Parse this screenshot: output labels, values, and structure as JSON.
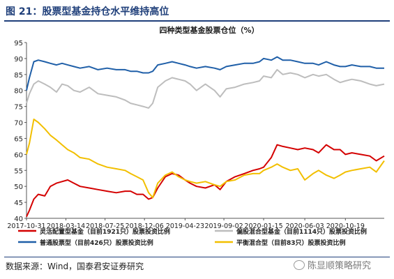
{
  "figure": {
    "title": "图 21：股票型基金持仓水平维持高位",
    "source": "数据来源：Wind，国泰君安证券研究",
    "watermark": "陈显顺策略研究"
  },
  "colors": {
    "title": "#1f3f7a",
    "axis": "#555555",
    "flexible": "#d40000",
    "partial_equity": "#bdbdbd",
    "equity": "#1f5fa8",
    "balanced": "#f2bf00"
  },
  "chart_data": {
    "type": "line",
    "title": "四种类型基金股票仓位（%）",
    "xlabel": "",
    "ylabel": "",
    "ylim": [
      40,
      95
    ],
    "yticks": [
      40,
      45,
      50,
      55,
      60,
      65,
      70,
      75,
      80,
      85,
      90,
      95
    ],
    "x_tick_labels": [
      "2017-10-31",
      "2018-03-14",
      "2018-07-25",
      "2018-12-06",
      "2019-04-23",
      "2019-09-02",
      "2020-01-15",
      "2020-06-03",
      "2020-10-19"
    ],
    "x_start": "2017-10-31",
    "x_end": "2021-02-28",
    "legend_position": "bottom",
    "grid": false,
    "series": [
      {
        "name": "灵活配置型基金（目前1921只）股票投资比例",
        "color": "#d40000",
        "x": [
          "2017-10-31",
          "2017-11-10",
          "2017-11-25",
          "2017-12-10",
          "2018-01-01",
          "2018-01-20",
          "2018-02-10",
          "2018-03-01",
          "2018-03-20",
          "2018-04-10",
          "2018-05-01",
          "2018-06-01",
          "2018-07-01",
          "2018-08-01",
          "2018-09-01",
          "2018-10-01",
          "2018-10-20",
          "2018-11-10",
          "2018-12-01",
          "2018-12-20",
          "2019-01-03",
          "2019-01-20",
          "2019-02-15",
          "2019-03-10",
          "2019-04-01",
          "2019-04-23",
          "2019-05-10",
          "2019-06-01",
          "2019-07-01",
          "2019-08-01",
          "2019-08-20",
          "2019-09-10",
          "2019-10-10",
          "2019-11-10",
          "2019-12-10",
          "2020-01-01",
          "2020-01-15",
          "2020-02-10",
          "2020-03-01",
          "2020-03-20",
          "2020-04-15",
          "2020-05-10",
          "2020-06-03",
          "2020-07-01",
          "2020-07-20",
          "2020-08-15",
          "2020-09-10",
          "2020-10-01",
          "2020-10-19",
          "2020-11-10",
          "2020-12-10",
          "2021-01-10",
          "2021-02-01",
          "2021-02-28"
        ],
        "values": [
          40.5,
          42.5,
          46,
          47.5,
          47,
          50,
          51,
          51.5,
          52,
          51,
          50,
          49.5,
          49,
          48.5,
          48,
          48.5,
          48.5,
          47.5,
          47.5,
          46,
          46.5,
          49.5,
          53,
          54,
          53.5,
          52,
          51,
          50,
          49.5,
          50.5,
          49,
          51.5,
          53,
          54,
          55,
          55.5,
          56,
          59,
          63,
          62.5,
          62,
          61.5,
          62,
          61.5,
          60.5,
          63,
          61.5,
          61.5,
          60,
          60.5,
          60,
          59.5,
          58,
          59.5
        ]
      },
      {
        "name": "偏股混合型基金（目前1114只）股票投资比例",
        "color": "#bdbdbd",
        "x": [
          "2017-10-31",
          "2017-11-10",
          "2017-11-25",
          "2017-12-10",
          "2018-01-01",
          "2018-01-20",
          "2018-02-10",
          "2018-03-01",
          "2018-03-20",
          "2018-04-10",
          "2018-05-01",
          "2018-06-01",
          "2018-07-01",
          "2018-08-01",
          "2018-09-01",
          "2018-10-01",
          "2018-10-20",
          "2018-11-10",
          "2018-12-01",
          "2018-12-20",
          "2019-01-03",
          "2019-01-20",
          "2019-02-15",
          "2019-03-10",
          "2019-04-01",
          "2019-04-23",
          "2019-05-10",
          "2019-06-01",
          "2019-07-01",
          "2019-08-01",
          "2019-08-20",
          "2019-09-10",
          "2019-10-10",
          "2019-11-10",
          "2019-12-10",
          "2020-01-01",
          "2020-01-15",
          "2020-02-10",
          "2020-03-01",
          "2020-03-20",
          "2020-04-15",
          "2020-05-10",
          "2020-06-03",
          "2020-07-01",
          "2020-07-20",
          "2020-08-15",
          "2020-09-10",
          "2020-10-01",
          "2020-10-19",
          "2020-11-10",
          "2020-12-10",
          "2021-01-10",
          "2021-02-01",
          "2021-02-28"
        ],
        "values": [
          76,
          79,
          82,
          83,
          82,
          81,
          79.5,
          82,
          81.5,
          80,
          79.5,
          81,
          79,
          78.5,
          78,
          77,
          76,
          75.5,
          75,
          74.5,
          76,
          81,
          83,
          84,
          83.5,
          83,
          82,
          80,
          82,
          80,
          78,
          80.5,
          81,
          82,
          82.5,
          83,
          84.5,
          84,
          86.5,
          85,
          85.5,
          85,
          84,
          85,
          84.5,
          85,
          83.5,
          82.5,
          83,
          83.5,
          83,
          82,
          81.5,
          82
        ]
      },
      {
        "name": "普通股票型（目前426只）股票投资比例",
        "color": "#1f5fa8",
        "x": [
          "2017-10-31",
          "2017-11-10",
          "2017-11-25",
          "2017-12-10",
          "2018-01-01",
          "2018-01-20",
          "2018-02-10",
          "2018-03-01",
          "2018-03-20",
          "2018-04-10",
          "2018-05-01",
          "2018-06-01",
          "2018-07-01",
          "2018-08-01",
          "2018-09-01",
          "2018-10-01",
          "2018-10-20",
          "2018-11-10",
          "2018-12-01",
          "2018-12-20",
          "2019-01-03",
          "2019-01-20",
          "2019-02-15",
          "2019-03-10",
          "2019-04-01",
          "2019-04-23",
          "2019-05-10",
          "2019-06-01",
          "2019-07-01",
          "2019-08-01",
          "2019-08-20",
          "2019-09-10",
          "2019-10-10",
          "2019-11-10",
          "2019-12-10",
          "2020-01-01",
          "2020-01-15",
          "2020-02-10",
          "2020-03-01",
          "2020-03-20",
          "2020-04-15",
          "2020-05-10",
          "2020-06-03",
          "2020-07-01",
          "2020-07-20",
          "2020-08-15",
          "2020-09-10",
          "2020-10-01",
          "2020-10-19",
          "2020-11-10",
          "2020-12-10",
          "2021-01-10",
          "2021-02-01",
          "2021-02-28"
        ],
        "values": [
          80,
          84,
          89,
          89.5,
          89,
          88.5,
          88,
          88.5,
          88,
          87.5,
          87,
          87.5,
          86.5,
          87,
          86.5,
          86.5,
          86,
          86,
          85.5,
          85.5,
          86,
          88,
          88.5,
          89,
          88.5,
          88,
          87.5,
          87,
          87.5,
          87,
          86.5,
          87.5,
          88,
          88.5,
          88.5,
          89,
          90,
          89.5,
          90.5,
          89.5,
          89.5,
          89,
          88.5,
          88.5,
          88,
          89,
          88,
          87.5,
          87.5,
          88,
          87.5,
          87.5,
          87,
          87
        ]
      },
      {
        "name": "平衡混合型（目前83只）股票投资比例",
        "color": "#f2bf00",
        "x": [
          "2017-10-31",
          "2017-11-10",
          "2017-11-25",
          "2017-12-10",
          "2018-01-01",
          "2018-01-20",
          "2018-02-10",
          "2018-03-01",
          "2018-03-20",
          "2018-04-10",
          "2018-05-01",
          "2018-06-01",
          "2018-07-01",
          "2018-08-01",
          "2018-09-01",
          "2018-10-01",
          "2018-10-20",
          "2018-11-10",
          "2018-12-01",
          "2018-12-20",
          "2019-01-03",
          "2019-01-20",
          "2019-02-15",
          "2019-03-10",
          "2019-04-01",
          "2019-04-23",
          "2019-05-10",
          "2019-06-01",
          "2019-07-01",
          "2019-08-01",
          "2019-08-20",
          "2019-09-10",
          "2019-10-10",
          "2019-11-10",
          "2019-12-10",
          "2020-01-01",
          "2020-01-15",
          "2020-02-10",
          "2020-03-01",
          "2020-03-20",
          "2020-04-15",
          "2020-05-10",
          "2020-06-03",
          "2020-07-01",
          "2020-07-20",
          "2020-08-15",
          "2020-09-10",
          "2020-10-01",
          "2020-10-19",
          "2020-11-10",
          "2020-12-10",
          "2021-01-10",
          "2021-02-01",
          "2021-02-28"
        ],
        "values": [
          60,
          63.5,
          71,
          70,
          68,
          66,
          64.5,
          63,
          61.5,
          60.5,
          59,
          58.5,
          57,
          56,
          55.5,
          55,
          54,
          53,
          52,
          48,
          46.5,
          51,
          53.5,
          54.5,
          53,
          52,
          51.5,
          51,
          51.5,
          50.5,
          50,
          51.5,
          52,
          53.5,
          54,
          54,
          55,
          56,
          57,
          56,
          55,
          55.5,
          52,
          54,
          55,
          53.5,
          52.5,
          53.5,
          54.5,
          55,
          55.5,
          56,
          54.5,
          58
        ]
      }
    ]
  }
}
